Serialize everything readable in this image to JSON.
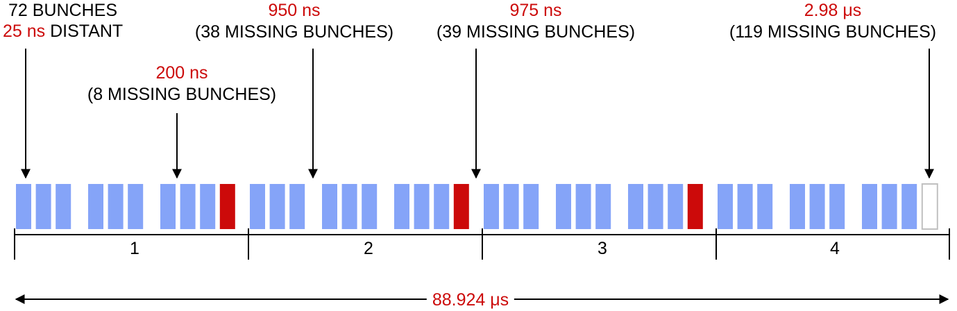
{
  "annotations": {
    "train": {
      "line1": "72 BUNCHES",
      "line2_value": "25 ns",
      "line2_rest": " DISTANT"
    },
    "gap_200": {
      "value": "200 ns",
      "note": "(8 MISSING BUNCHES)"
    },
    "gap_950": {
      "value": "950 ns",
      "note": "(38 MISSING BUNCHES)"
    },
    "gap_975": {
      "value": "975 ns",
      "note": "(39 MISSING BUNCHES)"
    },
    "gap_abort": {
      "value": "2.98 μs",
      "note": "(119 MISSING BUNCHES)"
    }
  },
  "segments": [
    "1",
    "2",
    "3",
    "4"
  ],
  "total_span": "88.924 μs",
  "colors": {
    "bunch": "#85a4f8",
    "gap_bunch": "#cc0a0a",
    "empty": "#c0c0c0",
    "text_red": "#cc0a0a"
  },
  "pattern": {
    "segments": 4,
    "groups_per_segment": 3,
    "trains_per_group": 3,
    "bunches_per_train": 3,
    "red_marker_after_group": [
      1,
      2,
      3
    ],
    "empty_slot_at_end": true
  }
}
